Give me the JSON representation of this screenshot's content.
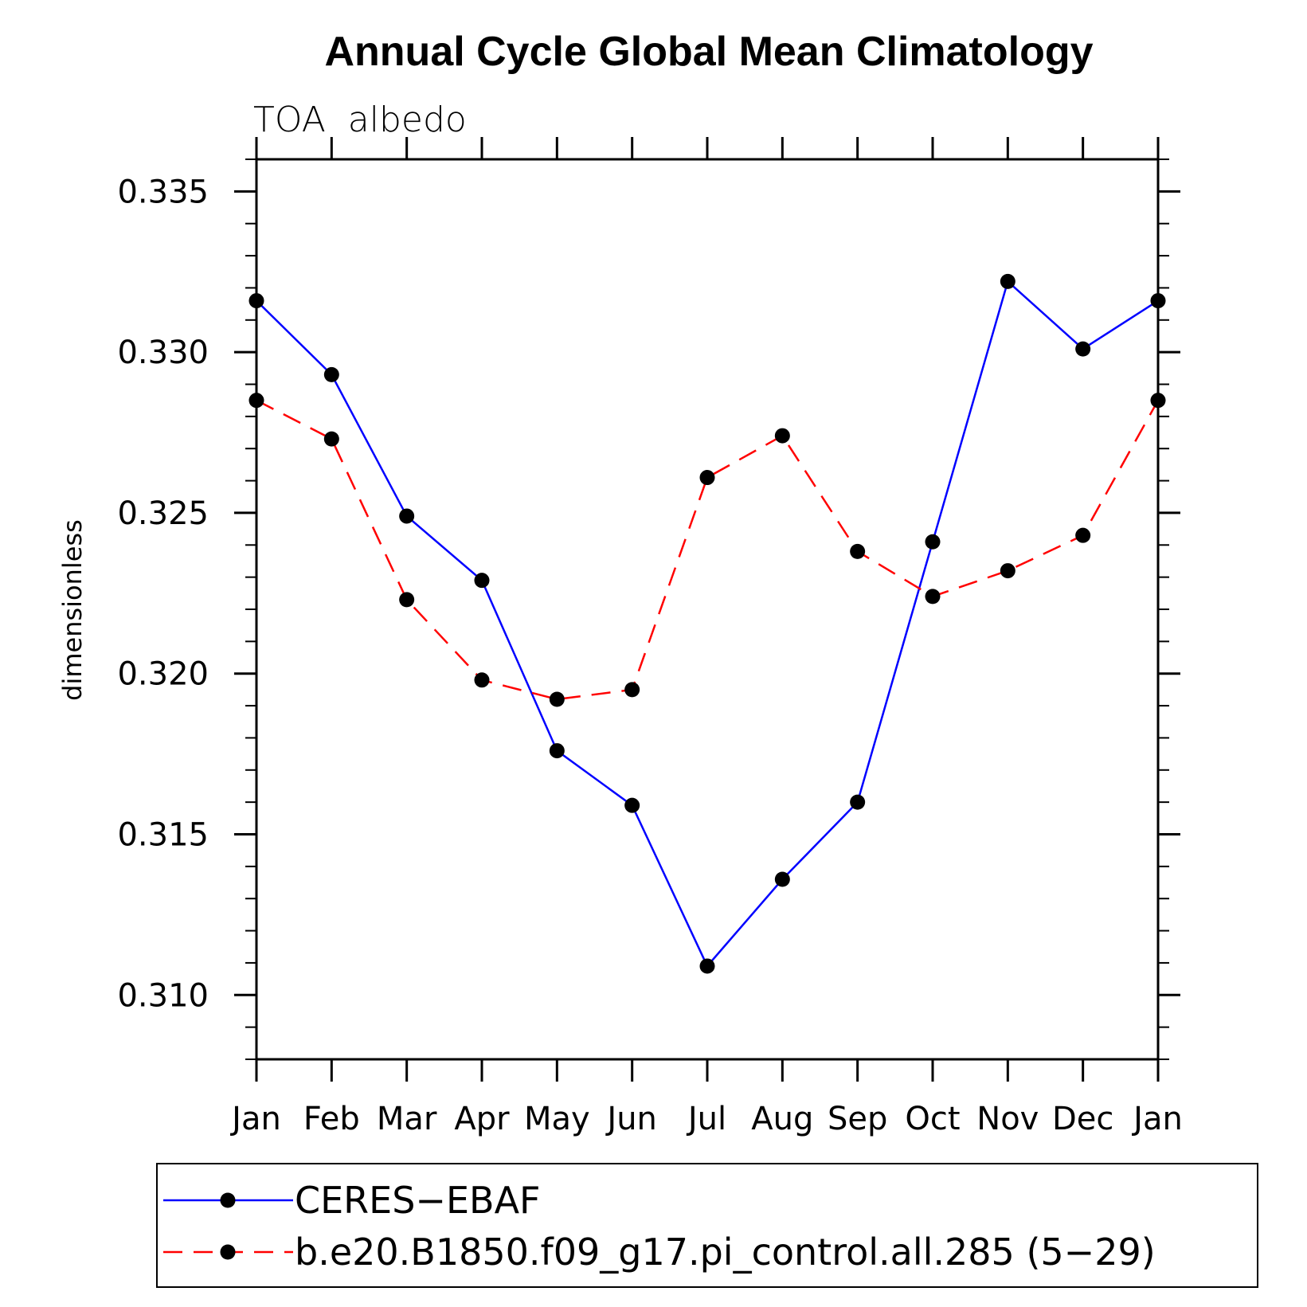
{
  "chart_data": {
    "type": "line",
    "title": "Annual Cycle Global Mean Climatology",
    "subtitle": "TOA  albedo",
    "ylabel": "dimensionless",
    "xlabel": "",
    "categories": [
      "Jan",
      "Feb",
      "Mar",
      "Apr",
      "May",
      "Jun",
      "Jul",
      "Aug",
      "Sep",
      "Oct",
      "Nov",
      "Dec",
      "Jan"
    ],
    "ylim": [
      0.308,
      0.336
    ],
    "yticks": [
      {
        "value": 0.31,
        "label": "0.310"
      },
      {
        "value": 0.315,
        "label": "0.315"
      },
      {
        "value": 0.32,
        "label": "0.320"
      },
      {
        "value": 0.325,
        "label": "0.325"
      },
      {
        "value": 0.33,
        "label": "0.330"
      },
      {
        "value": 0.335,
        "label": "0.335"
      }
    ],
    "ymajor_step": 0.005,
    "yminor_step": 0.001,
    "grid": false,
    "legend_position": "bottom",
    "series": [
      {
        "name": "CERES−EBAF",
        "color": "#0000ff",
        "dash": "solid",
        "marker": "circle",
        "values": [
          0.3316,
          0.3293,
          0.3249,
          0.3229,
          0.3176,
          0.3159,
          0.3109,
          0.3136,
          0.316,
          0.3241,
          0.3322,
          0.3301,
          0.3316
        ]
      },
      {
        "name": "b.e20.B1850.f09_g17.pi_control.all.285 (5−29)",
        "color": "#ff0000",
        "dash": "dashed",
        "marker": "circle",
        "values": [
          0.3285,
          0.3273,
          0.3223,
          0.3198,
          0.3192,
          0.3195,
          0.3261,
          0.3274,
          0.3238,
          0.3224,
          0.3232,
          0.3243,
          0.3285
        ]
      }
    ]
  }
}
